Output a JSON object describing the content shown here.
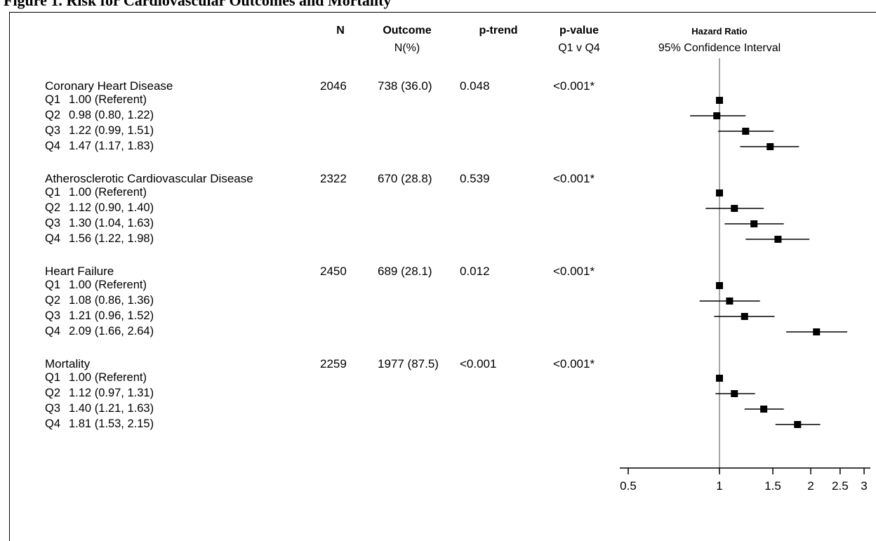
{
  "figure_title": "Figure 1. Risk for Cardiovascular Outcomes and Mortality",
  "headers": {
    "n": "N",
    "outcome": "Outcome",
    "outcome_sub": "N(%)",
    "p_trend": "p-trend",
    "p_value": "p-value",
    "p_value_sub": "Q1 v Q4",
    "hr": "Hazard Ratio",
    "hr_sub": "95% Confidence Interval"
  },
  "groups": [
    {
      "name": "Coronary Heart Disease",
      "n": "2046",
      "outcome": "738 (36.0)",
      "p_trend": "0.048",
      "p_value": "<0.001*",
      "rows": [
        {
          "q": "Q1",
          "text": "1.00 (Referent)"
        },
        {
          "q": "Q2",
          "text": "0.98 (0.80, 1.22)"
        },
        {
          "q": "Q3",
          "text": "1.22 (0.99, 1.51)"
        },
        {
          "q": "Q4",
          "text": "1.47 (1.17, 1.83)"
        }
      ]
    },
    {
      "name": "Atherosclerotic Cardiovascular Disease",
      "n": "2322",
      "outcome": "670 (28.8)",
      "p_trend": "0.539",
      "p_value": "<0.001*",
      "rows": [
        {
          "q": "Q1",
          "text": "1.00 (Referent)"
        },
        {
          "q": "Q2",
          "text": "1.12 (0.90, 1.40)"
        },
        {
          "q": "Q3",
          "text": "1.30 (1.04, 1.63)"
        },
        {
          "q": "Q4",
          "text": "1.56 (1.22, 1.98)"
        }
      ]
    },
    {
      "name": "Heart Failure",
      "n": "2450",
      "outcome": "689 (28.1)",
      "p_trend": "0.012",
      "p_value": "<0.001*",
      "rows": [
        {
          "q": "Q1",
          "text": "1.00 (Referent)"
        },
        {
          "q": "Q2",
          "text": "1.08 (0.86, 1.36)"
        },
        {
          "q": "Q3",
          "text": "1.21 (0.96, 1.52)"
        },
        {
          "q": "Q4",
          "text": "2.09 (1.66, 2.64)"
        }
      ]
    },
    {
      "name": "Mortality",
      "n": "2259",
      "outcome": "1977 (87.5)",
      "p_trend": "<0.001",
      "p_value": "<0.001*",
      "rows": [
        {
          "q": "Q1",
          "text": "1.00 (Referent)"
        },
        {
          "q": "Q2",
          "text": "1.12 (0.97, 1.31)"
        },
        {
          "q": "Q3",
          "text": "1.40 (1.21, 1.63)"
        },
        {
          "q": "Q4",
          "text": "1.81 (1.53, 2.15)"
        }
      ]
    }
  ],
  "chart_data": {
    "type": "forest",
    "title": "Hazard Ratio",
    "subtitle": "95% Confidence Interval",
    "x_scale": "log",
    "xlim": [
      0.5,
      3
    ],
    "reference_line": 1,
    "xticks": [
      0.5,
      1,
      1.5,
      2,
      2.5,
      3
    ],
    "xtick_labels": [
      "0.5",
      "1",
      "1.5",
      "2",
      "2.5",
      "3"
    ],
    "points": [
      {
        "group": "Coronary Heart Disease",
        "q": "Q1",
        "hr": 1.0,
        "lo": 1.0,
        "hi": 1.0
      },
      {
        "group": "Coronary Heart Disease",
        "q": "Q2",
        "hr": 0.98,
        "lo": 0.8,
        "hi": 1.22
      },
      {
        "group": "Coronary Heart Disease",
        "q": "Q3",
        "hr": 1.22,
        "lo": 0.99,
        "hi": 1.51
      },
      {
        "group": "Coronary Heart Disease",
        "q": "Q4",
        "hr": 1.47,
        "lo": 1.17,
        "hi": 1.83
      },
      {
        "group": "Atherosclerotic Cardiovascular Disease",
        "q": "Q1",
        "hr": 1.0,
        "lo": 1.0,
        "hi": 1.0
      },
      {
        "group": "Atherosclerotic Cardiovascular Disease",
        "q": "Q2",
        "hr": 1.12,
        "lo": 0.9,
        "hi": 1.4
      },
      {
        "group": "Atherosclerotic Cardiovascular Disease",
        "q": "Q3",
        "hr": 1.3,
        "lo": 1.04,
        "hi": 1.63
      },
      {
        "group": "Atherosclerotic Cardiovascular Disease",
        "q": "Q4",
        "hr": 1.56,
        "lo": 1.22,
        "hi": 1.98
      },
      {
        "group": "Heart Failure",
        "q": "Q1",
        "hr": 1.0,
        "lo": 1.0,
        "hi": 1.0
      },
      {
        "group": "Heart Failure",
        "q": "Q2",
        "hr": 1.08,
        "lo": 0.86,
        "hi": 1.36
      },
      {
        "group": "Heart Failure",
        "q": "Q3",
        "hr": 1.21,
        "lo": 0.96,
        "hi": 1.52
      },
      {
        "group": "Heart Failure",
        "q": "Q4",
        "hr": 2.09,
        "lo": 1.66,
        "hi": 2.64
      },
      {
        "group": "Mortality",
        "q": "Q1",
        "hr": 1.0,
        "lo": 1.0,
        "hi": 1.0
      },
      {
        "group": "Mortality",
        "q": "Q2",
        "hr": 1.12,
        "lo": 0.97,
        "hi": 1.31
      },
      {
        "group": "Mortality",
        "q": "Q3",
        "hr": 1.4,
        "lo": 1.21,
        "hi": 1.63
      },
      {
        "group": "Mortality",
        "q": "Q4",
        "hr": 1.81,
        "lo": 1.53,
        "hi": 2.15
      }
    ]
  }
}
